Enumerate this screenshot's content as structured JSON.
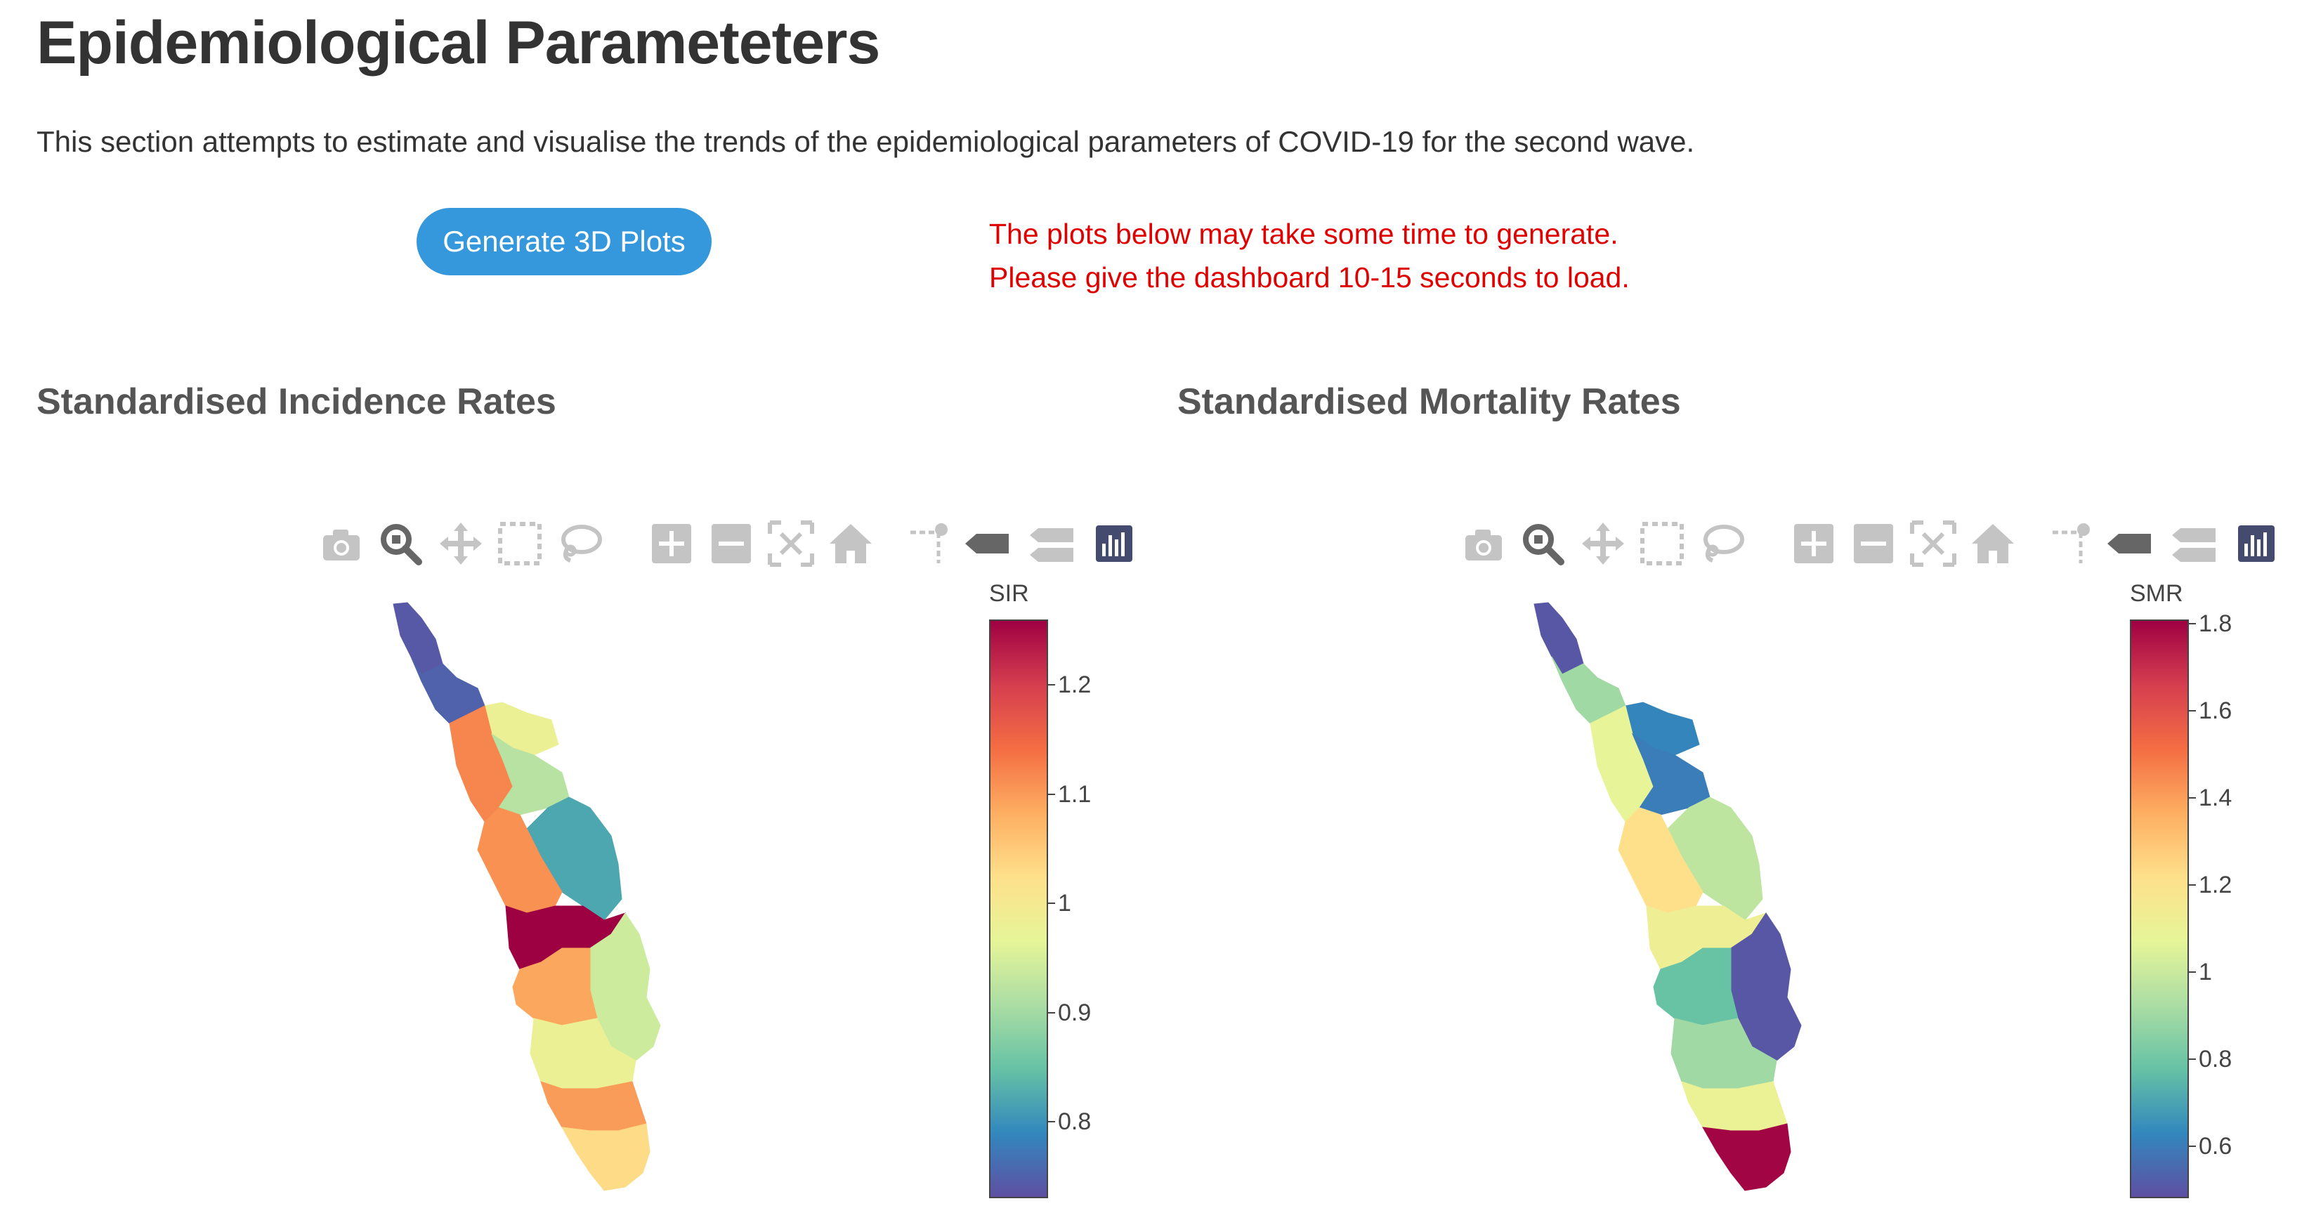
{
  "page": {
    "title": "Epidemiological Parameteters",
    "description": "This section attempts to estimate and visualise the trends of the epidemiological parameters of COVID-19 for the second wave."
  },
  "generate_button": {
    "label": "Generate 3D Plots",
    "color": "#3598dc"
  },
  "notice": {
    "line1": "The plots below may take some time to generate.",
    "line2": "Please give the dashboard 10-15 seconds to load.",
    "color": "#e00000"
  },
  "modebar_icons": [
    "camera-icon",
    "zoom-icon",
    "pan-icon",
    "box-select-icon",
    "lasso-select-icon",
    "zoom-in-icon",
    "zoom-out-icon",
    "autoscale-icon",
    "reset-axes-icon",
    "spike-lines-icon",
    "hover-closest-icon",
    "hover-compare-icon",
    "plotly-logo-icon"
  ],
  "panels": [
    {
      "title": "Standardised Incidence Rates",
      "colorbar": {
        "title": "SIR",
        "min": 0.73,
        "max": 1.26,
        "ticks": [
          "0.8",
          "0.9",
          "1",
          "1.1",
          "1.2"
        ]
      },
      "districts": [
        {
          "value": 0.74
        },
        {
          "value": 0.75
        },
        {
          "value": 0.98
        },
        {
          "value": 1.12
        },
        {
          "value": 0.92
        },
        {
          "value": 0.82
        },
        {
          "value": 1.11
        },
        {
          "value": 1.26
        },
        {
          "value": 0.94
        },
        {
          "value": 1.09
        },
        {
          "value": 0.98
        },
        {
          "value": 1.1
        },
        {
          "value": 1.03
        }
      ]
    },
    {
      "title": "Standardised Mortality Rates",
      "colorbar": {
        "title": "SMR",
        "min": 0.48,
        "max": 1.81,
        "ticks": [
          "0.6",
          "0.8",
          "1",
          "1.2",
          "1.4",
          "1.6",
          "1.8"
        ]
      },
      "districts": [
        {
          "value": 0.5
        },
        {
          "value": 0.9
        },
        {
          "value": 0.62
        },
        {
          "value": 1.08
        },
        {
          "value": 0.6
        },
        {
          "value": 0.97
        },
        {
          "value": 1.22
        },
        {
          "value": 1.12
        },
        {
          "value": 0.5
        },
        {
          "value": 0.78
        },
        {
          "value": 0.9
        },
        {
          "value": 1.1
        },
        {
          "value": 1.8
        }
      ]
    }
  ],
  "colorscale": [
    "#5e4fa2",
    "#3288bd",
    "#66c2a5",
    "#abdda4",
    "#e6f598",
    "#fee08b",
    "#fdae61",
    "#f46d43",
    "#d53e4f",
    "#9e0142"
  ]
}
